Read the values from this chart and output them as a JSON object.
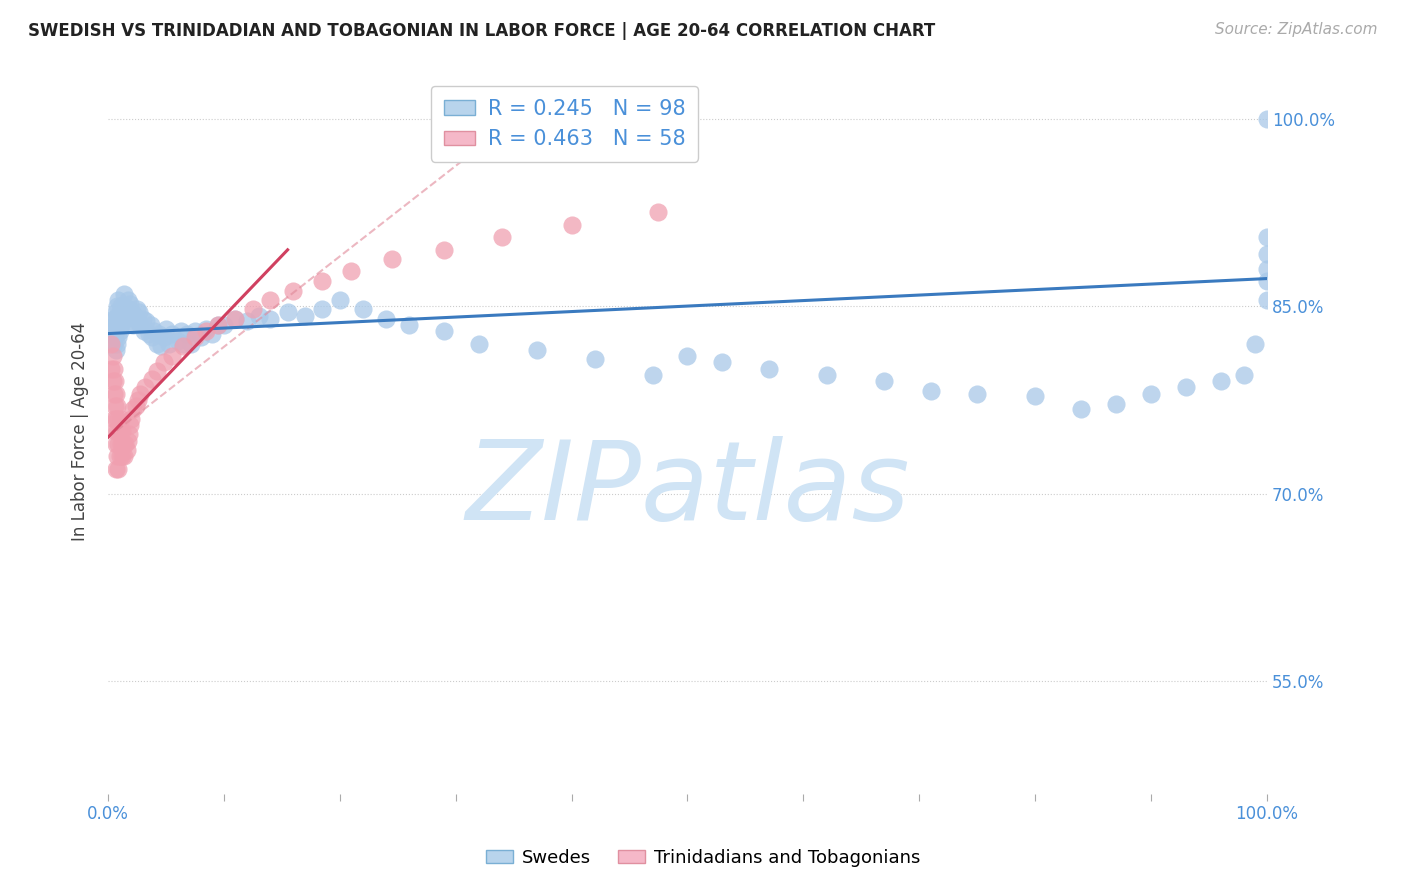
{
  "title": "SWEDISH VS TRINIDADIAN AND TOBAGONIAN IN LABOR FORCE | AGE 20-64 CORRELATION CHART",
  "source_text": "Source: ZipAtlas.com",
  "ylabel": "In Labor Force | Age 20-64",
  "ytick_labels": [
    "55.0%",
    "70.0%",
    "85.0%",
    "100.0%"
  ],
  "ytick_values": [
    0.55,
    0.7,
    0.85,
    1.0
  ],
  "legend_bottom": [
    "Swedes",
    "Trinidadians and Tobagonians"
  ],
  "blue_color": "#a8c8e8",
  "pink_color": "#f0a0b0",
  "blue_line_color": "#3a7abf",
  "pink_line_color": "#d04060",
  "pink_dash_color": "#e08898",
  "watermark_text": "ZIPatlas",
  "watermark_color": "#d0e4f5",
  "xlim": [
    0.0,
    1.0
  ],
  "ylim": [
    0.46,
    1.04
  ],
  "blue_trend": [
    0.0,
    1.0,
    0.828,
    0.872
  ],
  "pink_trend": [
    0.0,
    0.155,
    0.745,
    0.895
  ],
  "pink_dash": [
    0.0,
    0.38,
    0.745,
    1.02
  ],
  "grid_color": "#cccccc",
  "background_color": "#ffffff",
  "blue_x": [
    0.003,
    0.004,
    0.005,
    0.005,
    0.006,
    0.006,
    0.007,
    0.007,
    0.007,
    0.008,
    0.008,
    0.008,
    0.009,
    0.009,
    0.009,
    0.01,
    0.01,
    0.011,
    0.011,
    0.012,
    0.013,
    0.014,
    0.014,
    0.015,
    0.016,
    0.017,
    0.018,
    0.019,
    0.02,
    0.021,
    0.022,
    0.023,
    0.025,
    0.026,
    0.027,
    0.028,
    0.03,
    0.031,
    0.033,
    0.035,
    0.037,
    0.038,
    0.04,
    0.042,
    0.044,
    0.046,
    0.048,
    0.05,
    0.053,
    0.055,
    0.06,
    0.063,
    0.065,
    0.068,
    0.072,
    0.075,
    0.08,
    0.085,
    0.09,
    0.095,
    0.1,
    0.11,
    0.12,
    0.13,
    0.14,
    0.155,
    0.17,
    0.185,
    0.2,
    0.22,
    0.24,
    0.26,
    0.29,
    0.32,
    0.37,
    0.42,
    0.47,
    0.5,
    0.53,
    0.57,
    0.62,
    0.67,
    0.71,
    0.75,
    0.8,
    0.84,
    0.87,
    0.9,
    0.93,
    0.96,
    0.98,
    0.99,
    1.0,
    1.0,
    1.0,
    1.0,
    1.0,
    1.0
  ],
  "blue_y": [
    0.83,
    0.84,
    0.82,
    0.835,
    0.825,
    0.84,
    0.815,
    0.83,
    0.845,
    0.82,
    0.835,
    0.85,
    0.825,
    0.84,
    0.855,
    0.83,
    0.845,
    0.835,
    0.85,
    0.84,
    0.845,
    0.85,
    0.86,
    0.84,
    0.845,
    0.855,
    0.848,
    0.852,
    0.838,
    0.845,
    0.835,
    0.842,
    0.848,
    0.838,
    0.845,
    0.835,
    0.84,
    0.83,
    0.838,
    0.828,
    0.835,
    0.825,
    0.83,
    0.82,
    0.828,
    0.818,
    0.825,
    0.832,
    0.82,
    0.828,
    0.822,
    0.83,
    0.82,
    0.828,
    0.82,
    0.83,
    0.825,
    0.832,
    0.828,
    0.835,
    0.835,
    0.84,
    0.838,
    0.842,
    0.84,
    0.845,
    0.842,
    0.848,
    0.855,
    0.848,
    0.84,
    0.835,
    0.83,
    0.82,
    0.815,
    0.808,
    0.795,
    0.81,
    0.805,
    0.8,
    0.795,
    0.79,
    0.782,
    0.78,
    0.778,
    0.768,
    0.772,
    0.78,
    0.785,
    0.79,
    0.795,
    0.82,
    0.855,
    0.87,
    0.88,
    0.892,
    0.905,
    1.0
  ],
  "pink_x": [
    0.003,
    0.003,
    0.004,
    0.004,
    0.005,
    0.005,
    0.005,
    0.006,
    0.006,
    0.006,
    0.007,
    0.007,
    0.007,
    0.007,
    0.008,
    0.008,
    0.008,
    0.009,
    0.009,
    0.009,
    0.01,
    0.01,
    0.011,
    0.011,
    0.012,
    0.012,
    0.013,
    0.014,
    0.015,
    0.016,
    0.017,
    0.018,
    0.019,
    0.02,
    0.022,
    0.024,
    0.026,
    0.028,
    0.032,
    0.038,
    0.042,
    0.048,
    0.055,
    0.065,
    0.075,
    0.085,
    0.095,
    0.11,
    0.125,
    0.14,
    0.16,
    0.185,
    0.21,
    0.245,
    0.29,
    0.34,
    0.4,
    0.475
  ],
  "pink_y": [
    0.82,
    0.8,
    0.81,
    0.79,
    0.8,
    0.78,
    0.76,
    0.79,
    0.77,
    0.75,
    0.78,
    0.76,
    0.74,
    0.72,
    0.77,
    0.75,
    0.73,
    0.76,
    0.74,
    0.72,
    0.75,
    0.73,
    0.76,
    0.74,
    0.75,
    0.73,
    0.74,
    0.73,
    0.74,
    0.735,
    0.742,
    0.748,
    0.755,
    0.76,
    0.768,
    0.77,
    0.775,
    0.78,
    0.785,
    0.792,
    0.798,
    0.805,
    0.81,
    0.818,
    0.825,
    0.83,
    0.835,
    0.84,
    0.848,
    0.855,
    0.862,
    0.87,
    0.878,
    0.888,
    0.895,
    0.905,
    0.915,
    0.925
  ]
}
